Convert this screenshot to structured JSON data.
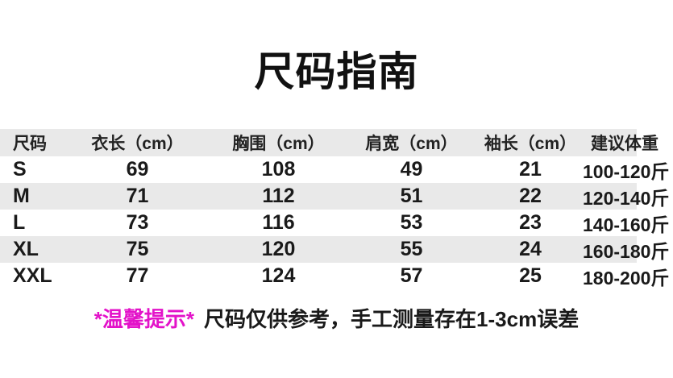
{
  "title": "尺码指南",
  "table": {
    "headers": [
      "尺码",
      "衣长（cm）",
      "胸围（cm）",
      "肩宽（cm）",
      "袖长（cm）",
      "建议体重"
    ],
    "rows": [
      [
        "S",
        "69",
        "108",
        "49",
        "21",
        "100-120斤"
      ],
      [
        "M",
        "71",
        "112",
        "51",
        "22",
        "120-140斤"
      ],
      [
        "L",
        "73",
        "116",
        "53",
        "23",
        "140-160斤"
      ],
      [
        "XL",
        "75",
        "120",
        "55",
        "24",
        "160-180斤"
      ],
      [
        "XXL",
        "77",
        "124",
        "57",
        "25",
        "180-200斤"
      ]
    ]
  },
  "note": {
    "highlight": "*温馨提示*",
    "text": "尺码仅供参考，手工测量存在1-3cm误差"
  },
  "colors": {
    "stripe": "#e9e9e9",
    "note_highlight": "#e312c9",
    "text": "#1a1a1a"
  }
}
